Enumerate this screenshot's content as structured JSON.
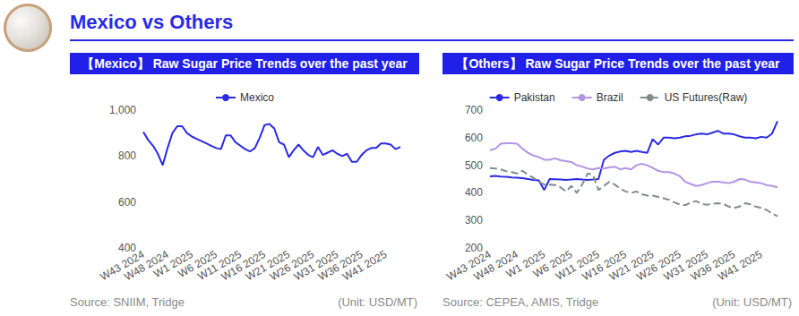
{
  "header": {
    "title": "Mexico vs Others"
  },
  "chart_data": [
    {
      "type": "line",
      "title": "【Mexico】 Raw Sugar Price Trends over the past year",
      "source": "Source: SNIIM, Tridge",
      "unit": "(Unit: USD/MT)",
      "categories": [
        "W43 2024",
        null,
        null,
        null,
        null,
        "W48 2024",
        null,
        null,
        null,
        null,
        "W1 2025",
        null,
        null,
        null,
        null,
        "W6 2025",
        null,
        null,
        null,
        null,
        "W11 2025",
        null,
        null,
        null,
        null,
        "W16 2025",
        null,
        null,
        null,
        null,
        "W21 2025",
        null,
        null,
        null,
        null,
        "W26 2025",
        null,
        null,
        null,
        null,
        "W31 2025",
        null,
        null,
        null,
        null,
        "W36 2025",
        null,
        null,
        null,
        null,
        "W41 2025",
        null,
        null,
        null
      ],
      "series": [
        {
          "name": "Mexico",
          "color": "#2a2ae6",
          "line_style": "solid",
          "values": [
            905,
            870,
            845,
            810,
            760,
            835,
            900,
            930,
            930,
            900,
            885,
            875,
            865,
            855,
            845,
            835,
            830,
            890,
            890,
            860,
            845,
            830,
            820,
            835,
            880,
            935,
            940,
            920,
            860,
            850,
            795,
            825,
            850,
            825,
            805,
            795,
            840,
            805,
            815,
            825,
            810,
            800,
            810,
            775,
            775,
            805,
            825,
            835,
            835,
            855,
            855,
            850,
            830,
            840
          ]
        }
      ],
      "ylim": [
        400,
        1000
      ],
      "yticks": [
        400,
        600,
        800,
        {
          "value": 1000,
          "label": "1,000"
        }
      ],
      "grid": false,
      "legend": "top"
    },
    {
      "type": "line",
      "title": "【Others】 Raw Sugar Price Trends over the past year",
      "source": "Source: CEPEA, AMIS, Tridge",
      "unit": "(Unit: USD/MT)",
      "categories": [
        "W43 2024",
        null,
        null,
        null,
        null,
        "W48 2024",
        null,
        null,
        null,
        null,
        "W1 2025",
        null,
        null,
        null,
        null,
        "W6 2025",
        null,
        null,
        null,
        null,
        "W11 2025",
        null,
        null,
        null,
        null,
        "W16 2025",
        null,
        null,
        null,
        null,
        "W21 2025",
        null,
        null,
        null,
        null,
        "W26 2025",
        null,
        null,
        null,
        null,
        "W31 2025",
        null,
        null,
        null,
        null,
        "W36 2025",
        null,
        null,
        null,
        null,
        "W41 2025",
        null,
        null,
        null
      ],
      "series": [
        {
          "name": "Pakistan",
          "color": "#2a2ae6",
          "line_style": "solid",
          "values": [
            460,
            461,
            459,
            458,
            456,
            455,
            453,
            450,
            447,
            445,
            410,
            450,
            449,
            448,
            447,
            448,
            450,
            448,
            447,
            448,
            450,
            520,
            535,
            545,
            550,
            552,
            548,
            552,
            548,
            545,
            595,
            575,
            600,
            600,
            598,
            600,
            605,
            607,
            612,
            615,
            612,
            618,
            625,
            615,
            615,
            612,
            605,
            600,
            600,
            598,
            603,
            600,
            615,
            660
          ]
        },
        {
          "name": "Brazil",
          "color": "#b493e6",
          "line_style": "solid",
          "values": [
            555,
            560,
            578,
            580,
            580,
            578,
            560,
            545,
            535,
            530,
            520,
            520,
            525,
            518,
            515,
            512,
            500,
            495,
            488,
            485,
            490,
            488,
            492,
            495,
            485,
            490,
            485,
            500,
            505,
            500,
            490,
            480,
            475,
            475,
            470,
            460,
            440,
            432,
            425,
            428,
            435,
            440,
            440,
            438,
            435,
            440,
            450,
            448,
            440,
            438,
            435,
            428,
            425,
            420
          ]
        },
        {
          "name": "US Futures(Raw)",
          "color": "#7f8c8d",
          "line_style": "dashed",
          "values": [
            490,
            488,
            485,
            478,
            475,
            470,
            480,
            465,
            455,
            440,
            430,
            430,
            428,
            420,
            405,
            425,
            400,
            430,
            470,
            465,
            410,
            425,
            440,
            430,
            415,
            405,
            400,
            405,
            395,
            390,
            390,
            385,
            380,
            375,
            365,
            358,
            355,
            365,
            370,
            360,
            357,
            360,
            362,
            360,
            350,
            345,
            350,
            362,
            358,
            350,
            345,
            338,
            325,
            315
          ]
        }
      ],
      "ylim": [
        200,
        700
      ],
      "yticks": [
        200,
        300,
        400,
        500,
        600,
        700
      ],
      "grid": false,
      "legend": "top"
    }
  ]
}
